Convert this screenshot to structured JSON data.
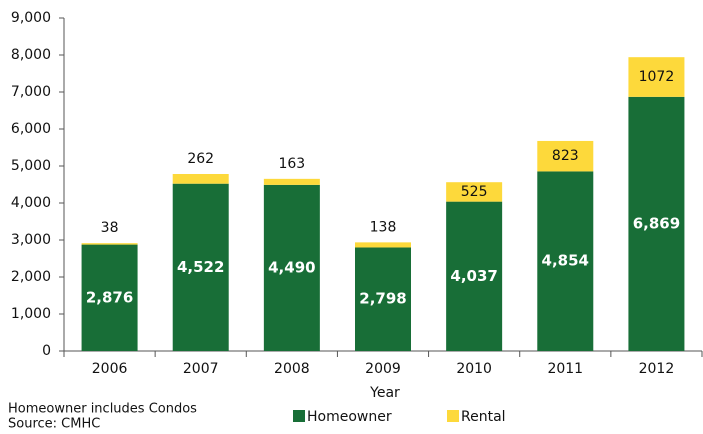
{
  "chart_data": {
    "type": "stacked_bar",
    "x_label": "Year",
    "categories": [
      "2006",
      "2007",
      "2008",
      "2009",
      "2010",
      "2011",
      "2012"
    ],
    "series": [
      {
        "name": "Homeowner",
        "color": "#186e37",
        "values": [
          2876,
          4522,
          4490,
          2798,
          4037,
          4854,
          6869
        ],
        "value_labels": [
          "2,876",
          "4,522",
          "4,490",
          "2,798",
          "4,037",
          "4,854",
          "6,869"
        ]
      },
      {
        "name": "Rental",
        "color": "#fdd93b",
        "values": [
          38,
          262,
          163,
          138,
          525,
          823,
          1072
        ]
      }
    ],
    "ylim": [
      0,
      9000
    ],
    "yticks": [
      0,
      {
        "value": 1000,
        "label": "1,000"
      },
      {
        "value": 2000,
        "label": "2,000"
      },
      {
        "value": 3000,
        "label": "3,000"
      },
      {
        "value": 4000,
        "label": "4,000"
      },
      {
        "value": 5000,
        "label": "5,000"
      },
      {
        "value": 6000,
        "label": "6,000"
      },
      {
        "value": 7000,
        "label": "7,000"
      },
      {
        "value": 8000,
        "label": "8,000"
      },
      {
        "value": 9000,
        "label": "9,000"
      }
    ],
    "notes": [
      "Homeowner includes Condos",
      "Source:  CMHC"
    ]
  }
}
